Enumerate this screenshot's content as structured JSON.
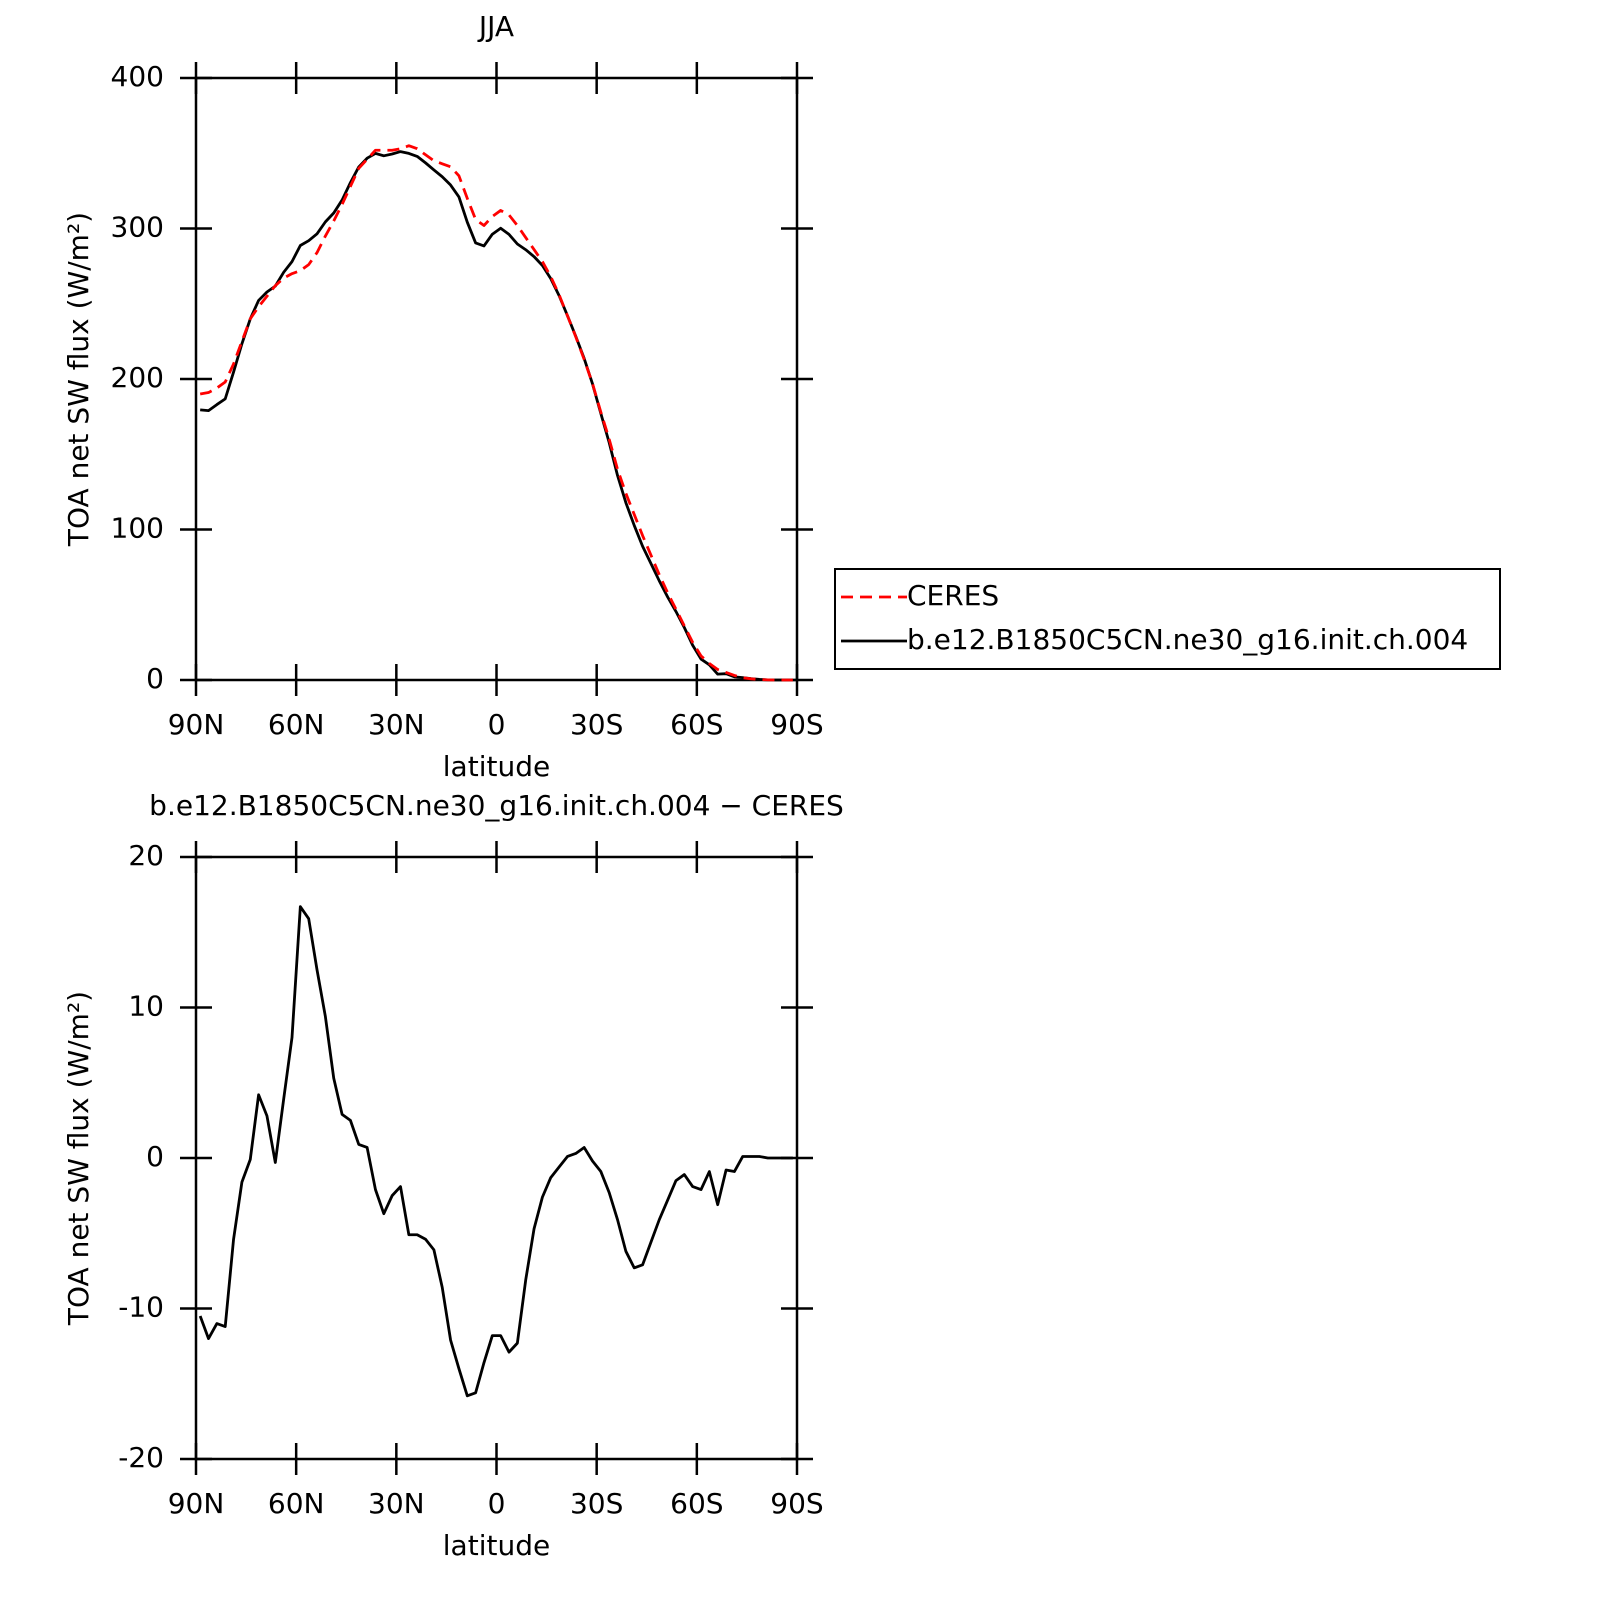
{
  "chart_data": [
    {
      "type": "line",
      "title": "JJA",
      "xlabel": "latitude",
      "ylabel": "TOA net SW flux (W/m²)",
      "x": [
        88.75,
        86.25,
        83.75,
        81.25,
        78.75,
        76.25,
        73.75,
        71.25,
        68.75,
        66.25,
        63.75,
        61.25,
        58.75,
        56.25,
        53.75,
        51.25,
        48.75,
        46.25,
        43.75,
        41.25,
        38.75,
        36.25,
        33.75,
        31.25,
        28.75,
        26.25,
        23.75,
        21.25,
        18.75,
        16.25,
        13.75,
        11.25,
        8.75,
        6.25,
        3.75,
        1.25,
        -1.25,
        -3.75,
        -6.25,
        -8.75,
        -11.25,
        -13.75,
        -16.25,
        -18.75,
        -21.25,
        -23.75,
        -26.25,
        -28.75,
        -31.25,
        -33.75,
        -36.25,
        -38.75,
        -41.25,
        -43.75,
        -46.25,
        -48.75,
        -51.25,
        -53.75,
        -56.25,
        -58.75,
        -61.25,
        -63.75,
        -66.25,
        -68.75,
        -71.25,
        -73.75,
        -76.25,
        -78.75,
        -81.25,
        -83.75,
        -86.25,
        -88.75
      ],
      "series": [
        {
          "name": "CERES",
          "color": "#ff0000",
          "line_style": "dashed",
          "values": [
            190,
            191,
            194,
            198,
            210,
            225,
            240,
            248,
            255,
            262,
            267,
            270,
            272,
            276,
            284,
            295,
            305,
            316,
            328,
            340,
            346,
            352,
            352,
            352,
            353,
            355,
            353,
            349,
            345,
            343,
            341,
            335,
            320,
            306,
            302,
            308,
            312,
            309,
            302,
            294,
            286,
            278,
            268,
            256,
            242,
            228,
            213,
            197,
            178,
            160,
            140,
            124,
            110,
            96,
            83,
            70,
            58,
            47,
            36,
            25,
            16,
            11,
            7,
            5,
            3,
            1.5,
            0.8,
            0.3,
            0.1,
            0,
            0,
            0
          ]
        },
        {
          "name": "b.e12.B1850C5CN.ne30_g16.init.ch.004",
          "color": "#000000",
          "line_style": "solid",
          "values": [
            179.5,
            179,
            183,
            186.8,
            204.6,
            223.4,
            239.9,
            252.2,
            257.8,
            261.7,
            270.9,
            278,
            288.7,
            291.9,
            296.5,
            304.4,
            310.3,
            318.9,
            330.5,
            340.9,
            346.7,
            349.9,
            348.3,
            349.5,
            351.1,
            349.9,
            347.9,
            343.6,
            338.9,
            334.4,
            328.9,
            321,
            304.2,
            290.4,
            288.4,
            296.2,
            300.2,
            296.1,
            289.7,
            285.9,
            281.3,
            275.4,
            266.7,
            255.4,
            242.1,
            228.3,
            213.7,
            196.8,
            177.1,
            157.7,
            135.9,
            117.8,
            102.7,
            88.9,
            77.4,
            65.9,
            55.2,
            45.5,
            34.9,
            23.1,
            13.9,
            10.1,
            3.9,
            4.2,
            2.1,
            1.6,
            0.9,
            0.4,
            0.1,
            0,
            0,
            0
          ]
        }
      ],
      "xlim": [
        90,
        -90
      ],
      "xticks": [
        {
          "value": 90,
          "label": "90N"
        },
        {
          "value": 60,
          "label": "60N"
        },
        {
          "value": 30,
          "label": "30N"
        },
        0,
        {
          "value": -30,
          "label": "30S"
        },
        {
          "value": -60,
          "label": "60S"
        },
        {
          "value": -90,
          "label": "90S"
        }
      ],
      "ylim": [
        0,
        400
      ],
      "yticks": [
        0,
        100,
        200,
        300,
        400
      ],
      "legend": "right"
    },
    {
      "type": "line",
      "title": "b.e12.B1850C5CN.ne30_g16.init.ch.004 − CERES",
      "xlabel": "latitude",
      "ylabel": "TOA net SW flux (W/m²)",
      "x": [
        88.75,
        86.25,
        83.75,
        81.25,
        78.75,
        76.25,
        73.75,
        71.25,
        68.75,
        66.25,
        63.75,
        61.25,
        58.75,
        56.25,
        53.75,
        51.25,
        48.75,
        46.25,
        43.75,
        41.25,
        38.75,
        36.25,
        33.75,
        31.25,
        28.75,
        26.25,
        23.75,
        21.25,
        18.75,
        16.25,
        13.75,
        11.25,
        8.75,
        6.25,
        3.75,
        1.25,
        -1.25,
        -3.75,
        -6.25,
        -8.75,
        -11.25,
        -13.75,
        -16.25,
        -18.75,
        -21.25,
        -23.75,
        -26.25,
        -28.75,
        -31.25,
        -33.75,
        -36.25,
        -38.75,
        -41.25,
        -43.75,
        -46.25,
        -48.75,
        -51.25,
        -53.75,
        -56.25,
        -58.75,
        -61.25,
        -63.75,
        -66.25,
        -68.75,
        -71.25,
        -73.75,
        -76.25,
        -78.75,
        -81.25,
        -83.75,
        -86.25,
        -88.75
      ],
      "values": [
        -10.5,
        -12,
        -11,
        -11.2,
        -5.4,
        -1.6,
        -0.1,
        4.2,
        2.8,
        -0.3,
        3.9,
        8,
        16.7,
        15.9,
        12.5,
        9.4,
        5.3,
        2.9,
        2.5,
        0.9,
        0.7,
        -2.1,
        -3.7,
        -2.5,
        -1.9,
        -5.1,
        -5.1,
        -5.4,
        -6.1,
        -8.6,
        -12.1,
        -14,
        -15.8,
        -15.6,
        -13.6,
        -11.8,
        -11.8,
        -12.9,
        -12.3,
        -8.1,
        -4.7,
        -2.6,
        -1.3,
        -0.6,
        0.1,
        0.3,
        0.7,
        -0.2,
        -0.9,
        -2.3,
        -4.1,
        -6.2,
        -7.3,
        -7.1,
        -5.6,
        -4.1,
        -2.8,
        -1.5,
        -1.1,
        -1.9,
        -2.1,
        -0.9,
        -3.1,
        -0.8,
        -0.9,
        0.1,
        0.1,
        0.1,
        0,
        0,
        0,
        0
      ],
      "color": "#000000",
      "xlim": [
        90,
        -90
      ],
      "xticks": [
        {
          "value": 90,
          "label": "90N"
        },
        {
          "value": 60,
          "label": "60N"
        },
        {
          "value": 30,
          "label": "30N"
        },
        0,
        {
          "value": -30,
          "label": "30S"
        },
        {
          "value": -60,
          "label": "60S"
        },
        {
          "value": -90,
          "label": "90S"
        }
      ],
      "ylim": [
        -20,
        20
      ],
      "yticks": [
        -20,
        -10,
        0,
        10,
        20
      ]
    }
  ]
}
